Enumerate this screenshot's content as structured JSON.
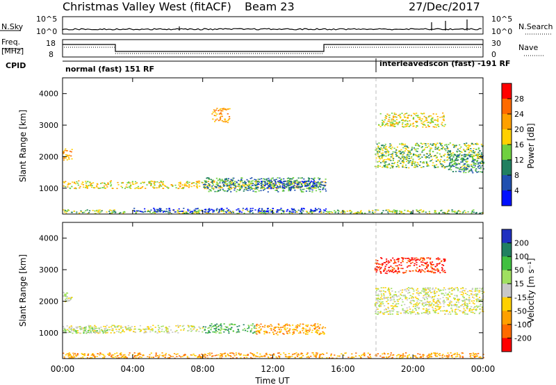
{
  "header": {
    "station": "Christmas Valley West (fitACF)",
    "beam": "Beam 23",
    "date": "27/Dec/2017"
  },
  "noise_panel": {
    "left_label": "N.Sky",
    "right_label": "N.Search",
    "left_ticks": [
      "10^5",
      "10^0"
    ],
    "right_ticks": [
      "10^5",
      "10^0"
    ]
  },
  "freq_panel": {
    "left_label_1": "Freq.",
    "left_label_2": "[MHz]",
    "right_label": "Nave",
    "left_ticks": [
      "18",
      "8"
    ],
    "right_ticks": [
      "30",
      "0"
    ],
    "cpid_label": "CPID",
    "mode_1": "normal (fast) 151 RF",
    "mode_2": "interleavedscon (fast) -191 RF"
  },
  "power_colorbar": {
    "title": "Power [dB]",
    "ticks": [
      "28",
      "24",
      "20",
      "16",
      "12",
      "8",
      "4"
    ],
    "colors": [
      "#ff0000",
      "#ff6a00",
      "#ffa000",
      "#ffd000",
      "#6fd040",
      "#208060",
      "#2050b0",
      "#0010ff"
    ]
  },
  "velocity_colorbar": {
    "title": "Velocity [m s⁻¹]",
    "ticks": [
      "200",
      "100",
      "50",
      "15",
      "-15",
      "-50",
      "-100",
      "-200"
    ],
    "colors": [
      "#2030c0",
      "#208060",
      "#40c040",
      "#a0e060",
      "#c8c8c8",
      "#ffd000",
      "#ffa000",
      "#ff6a00",
      "#ff0000"
    ]
  },
  "x_axis": {
    "title": "Time UT",
    "ticks": [
      "00:00",
      "04:00",
      "08:00",
      "12:00",
      "16:00",
      "20:00",
      "00:00"
    ]
  },
  "chart_data": [
    {
      "type": "heatmap",
      "title": "Power [dB]",
      "xlabel": "Time UT",
      "ylabel": "Slant Range [km]",
      "xlim": [
        0,
        24
      ],
      "ylim": [
        180,
        4500
      ],
      "yticks": [
        1000,
        2000,
        3000,
        4000
      ],
      "scatter_regions": [
        {
          "t0": 0.0,
          "t1": 24.0,
          "r0": 200,
          "r1": 330,
          "level": 4
        },
        {
          "t0": 4.0,
          "t1": 15.0,
          "r0": 250,
          "r1": 380,
          "level": 7
        },
        {
          "t0": 0.0,
          "t1": 15.0,
          "r0": 1000,
          "r1": 1250,
          "level": 3
        },
        {
          "t0": 8.0,
          "t1": 15.0,
          "r0": 900,
          "r1": 1350,
          "level": 5
        },
        {
          "t0": 11.0,
          "t1": 14.5,
          "r0": 1000,
          "r1": 1250,
          "level": 6
        },
        {
          "t0": 0.0,
          "t1": 0.5,
          "r0": 1900,
          "r1": 2300,
          "level": 2
        },
        {
          "t0": 17.8,
          "t1": 24.0,
          "r0": 1650,
          "r1": 2450,
          "level": 4
        },
        {
          "t0": 22.0,
          "t1": 24.0,
          "r0": 1500,
          "r1": 2100,
          "level": 5
        },
        {
          "t0": 18.0,
          "t1": 21.8,
          "r0": 2950,
          "r1": 3400,
          "level": 3
        },
        {
          "t0": 8.5,
          "t1": 9.5,
          "r0": 3100,
          "r1": 3550,
          "level": 2
        }
      ]
    },
    {
      "type": "heatmap",
      "title": "Velocity [m s⁻¹]",
      "xlabel": "Time UT",
      "ylabel": "Slant Range [km]",
      "xlim": [
        0,
        24
      ],
      "ylim": [
        180,
        4500
      ],
      "yticks": [
        1000,
        2000,
        3000,
        4000
      ],
      "scatter_regions": [
        {
          "t0": 0.0,
          "t1": 24.0,
          "r0": 200,
          "r1": 380,
          "level": 6
        },
        {
          "t0": 0.0,
          "t1": 8.0,
          "r0": 1000,
          "r1": 1250,
          "level": 4
        },
        {
          "t0": 0.0,
          "t1": 2.5,
          "r0": 1000,
          "r1": 1200,
          "level": 3
        },
        {
          "t0": 8.0,
          "t1": 11.0,
          "r0": 1000,
          "r1": 1300,
          "level": 2
        },
        {
          "t0": 11.0,
          "t1": 15.0,
          "r0": 950,
          "r1": 1300,
          "level": 6
        },
        {
          "t0": 17.8,
          "t1": 24.0,
          "r0": 1600,
          "r1": 2450,
          "level": 4
        },
        {
          "t0": 17.8,
          "t1": 21.8,
          "r0": 2900,
          "r1": 3400,
          "level": 8
        },
        {
          "t0": 0.0,
          "t1": 0.5,
          "r0": 2000,
          "r1": 2300,
          "level": 4
        }
      ]
    }
  ]
}
